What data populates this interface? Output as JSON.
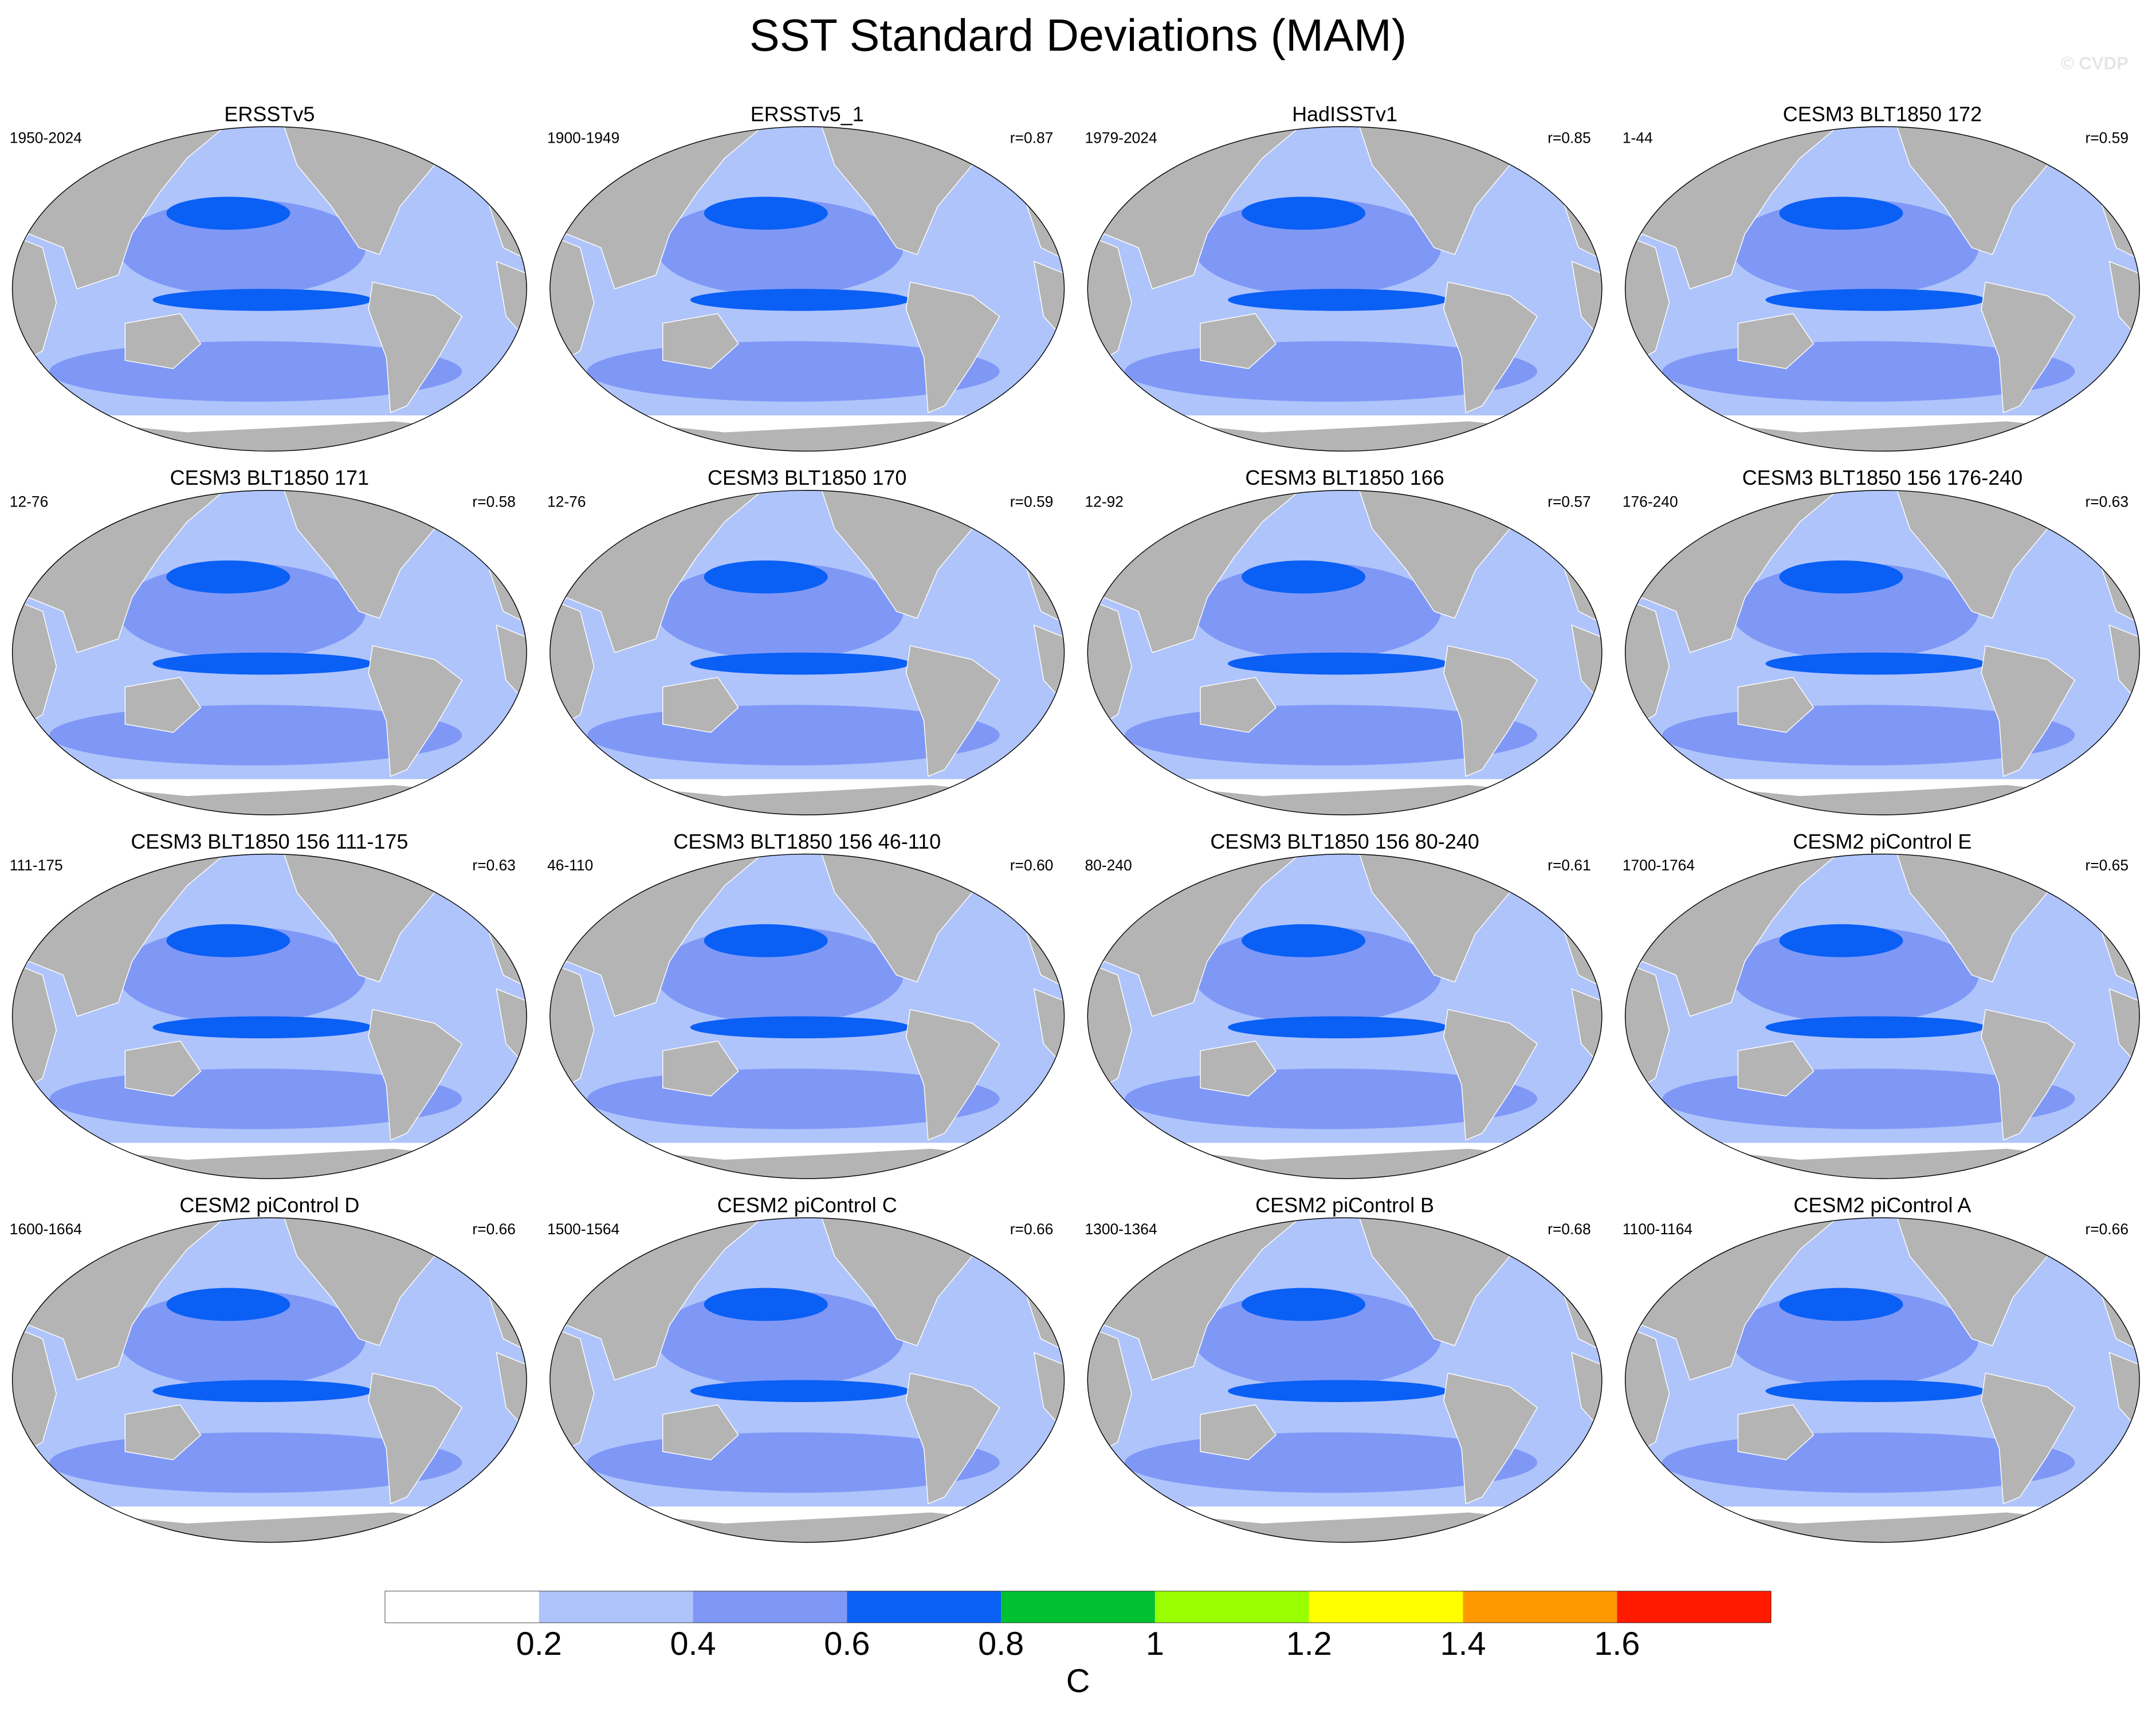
{
  "title": "SST Standard Deviations (MAM)",
  "watermark": "© CVDP",
  "panels": [
    {
      "title": "ERSSTv5",
      "period": "1950-2024"
    },
    {
      "title": "ERSSTv5_1",
      "period": "1900-1949",
      "r": "r=0.87"
    },
    {
      "title": "HadISSTv1",
      "period": "1979-2024",
      "r": "r=0.85"
    },
    {
      "title": "CESM3 BLT1850 172",
      "period": "1-44",
      "r": "r=0.59"
    },
    {
      "title": "CESM3 BLT1850 171",
      "period": "12-76",
      "r": "r=0.58"
    },
    {
      "title": "CESM3 BLT1850 170",
      "period": "12-76",
      "r": "r=0.59"
    },
    {
      "title": "CESM3 BLT1850 166",
      "period": "12-92",
      "r": "r=0.57"
    },
    {
      "title": "CESM3 BLT1850 156 176-240",
      "period": "176-240",
      "r": "r=0.63"
    },
    {
      "title": "CESM3 BLT1850 156 111-175",
      "period": "111-175",
      "r": "r=0.63"
    },
    {
      "title": "CESM3 BLT1850 156 46-110",
      "period": "46-110",
      "r": "r=0.60"
    },
    {
      "title": "CESM3 BLT1850 156 80-240",
      "period": "80-240",
      "r": "r=0.61"
    },
    {
      "title": "CESM2 piControl E",
      "period": "1700-1764",
      "r": "r=0.65"
    },
    {
      "title": "CESM2 piControl D",
      "period": "1600-1664",
      "r": "r=0.66"
    },
    {
      "title": "CESM2 piControl C",
      "period": "1500-1564",
      "r": "r=0.66"
    },
    {
      "title": "CESM2 piControl B",
      "period": "1300-1364",
      "r": "r=0.68"
    },
    {
      "title": "CESM2 piControl A",
      "period": "1100-1164",
      "r": "r=0.66"
    }
  ],
  "colorbar": {
    "colors": [
      "#ffffff",
      "#afc4fb",
      "#7f98f6",
      "#0a5ff5",
      "#00c132",
      "#99ff00",
      "#ffff00",
      "#ff9900",
      "#ff1a00"
    ],
    "ticks": [
      0.2,
      0.4,
      0.6,
      0.8,
      1,
      1.2,
      1.4,
      1.6
    ],
    "label": "C"
  }
}
